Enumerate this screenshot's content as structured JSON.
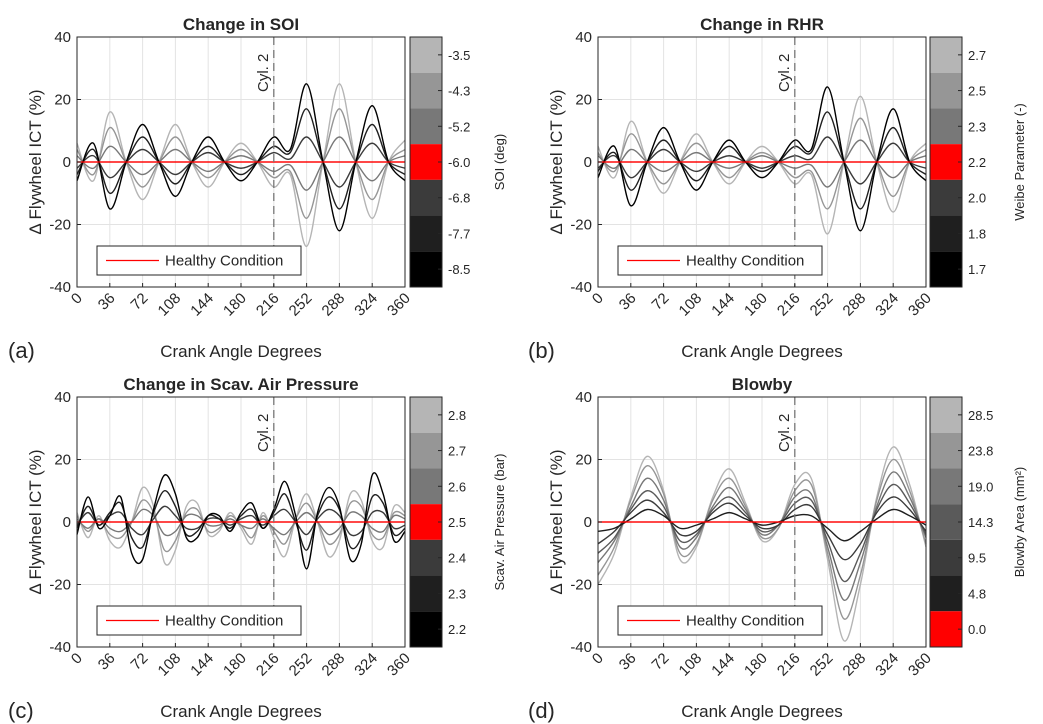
{
  "figure": {
    "panels": [
      {
        "label": "(a)",
        "title": "Change in SOI",
        "annotation": "Cyl. 2",
        "legend": "Healthy Condition",
        "colorbar": {
          "label": "SOI (deg)",
          "ticks": [
            "-3.5",
            "-4.3",
            "-5.2",
            "-6.0",
            "-6.8",
            "-7.7",
            "-8.5"
          ],
          "colors": [
            "#b5b5b5",
            "#969696",
            "#787878",
            "#ff0000",
            "#3b3b3b",
            "#1f1f1f",
            "#000000"
          ]
        }
      },
      {
        "label": "(b)",
        "title": "Change in RHR",
        "annotation": "Cyl. 2",
        "legend": "Healthy Condition",
        "colorbar": {
          "label": "Weibe Parameter (-)",
          "ticks": [
            "2.7",
            "2.5",
            "2.3",
            "2.2",
            "2.0",
            "1.8",
            "1.7"
          ],
          "colors": [
            "#b5b5b5",
            "#969696",
            "#787878",
            "#ff0000",
            "#3b3b3b",
            "#1f1f1f",
            "#000000"
          ]
        }
      },
      {
        "label": "(c)",
        "title": "Change in Scav. Air Pressure",
        "annotation": "Cyl. 2",
        "legend": "Healthy Condition",
        "colorbar": {
          "label": "Scav. Air Pressure (bar)",
          "ticks": [
            "2.8",
            "2.7",
            "2.6",
            "2.5",
            "2.4",
            "2.3",
            "2.2"
          ],
          "colors": [
            "#b5b5b5",
            "#969696",
            "#787878",
            "#ff0000",
            "#3b3b3b",
            "#1f1f1f",
            "#000000"
          ]
        }
      },
      {
        "label": "(d)",
        "title": "Blowby",
        "annotation": "Cyl. 2",
        "legend": "Healthy Condition",
        "colorbar": {
          "label": "Blowby Area (mm²)",
          "ticks": [
            "28.5",
            "23.8",
            "19.0",
            "14.3",
            "9.5",
            "4.8",
            "0.0"
          ],
          "colors": [
            "#b5b5b5",
            "#969696",
            "#787878",
            "#5a5a5a",
            "#3b3b3b",
            "#1f1f1f",
            "#ff0000"
          ]
        }
      }
    ]
  },
  "chart_data": [
    {
      "type": "line",
      "title": "Change in SOI",
      "xlabel": "Crank Angle Degrees",
      "ylabel": "Δ Flywheel ICT (%)",
      "xlim": [
        0,
        360
      ],
      "ylim": [
        -40,
        40
      ],
      "xticks": [
        0,
        36,
        72,
        108,
        144,
        180,
        216,
        252,
        288,
        324,
        360
      ],
      "yticks": [
        -40,
        -20,
        0,
        20,
        40
      ],
      "grid": true,
      "legend_position": "bottom-left",
      "vline": {
        "x": 216,
        "label": "Cyl. 2"
      },
      "x": [
        0,
        18,
        36,
        54,
        72,
        90,
        108,
        126,
        144,
        162,
        180,
        198,
        216,
        234,
        252,
        270,
        288,
        306,
        324,
        342,
        360
      ],
      "series": [
        {
          "name": "-3.5",
          "color": "#b5b5b5",
          "values": [
            6,
            -6,
            16,
            0,
            -12,
            0,
            12,
            0,
            -8,
            0,
            6,
            0,
            -8,
            -4,
            -27,
            0,
            25,
            0,
            -18,
            0,
            7
          ]
        },
        {
          "name": "-4.3",
          "color": "#969696",
          "values": [
            4,
            -4,
            11,
            0,
            -8,
            0,
            8,
            0,
            -5,
            0,
            4,
            0,
            -5,
            -3,
            -18,
            0,
            17,
            0,
            -12,
            0,
            4
          ]
        },
        {
          "name": "-5.2",
          "color": "#787878",
          "values": [
            2,
            -2,
            5,
            0,
            -4,
            0,
            4,
            0,
            -3,
            0,
            2,
            0,
            -3,
            -1,
            -9,
            0,
            8,
            0,
            -6,
            0,
            2
          ]
        },
        {
          "name": "-6.0",
          "color": "#ff0000",
          "values": [
            0,
            0,
            0,
            0,
            0,
            0,
            0,
            0,
            0,
            0,
            0,
            0,
            0,
            0,
            0,
            0,
            0,
            0,
            0,
            0,
            0
          ]
        },
        {
          "name": "-6.8",
          "color": "#3b3b3b",
          "values": [
            -2,
            2,
            -5,
            0,
            4,
            0,
            -4,
            0,
            3,
            0,
            -2,
            0,
            3,
            1,
            8,
            0,
            -8,
            0,
            6,
            0,
            -2
          ]
        },
        {
          "name": "-7.7",
          "color": "#1f1f1f",
          "values": [
            -4,
            4,
            -10,
            0,
            8,
            0,
            -7,
            0,
            5,
            0,
            -4,
            0,
            5,
            3,
            17,
            0,
            -15,
            0,
            12,
            0,
            -4
          ]
        },
        {
          "name": "-8.5",
          "color": "#000000",
          "values": [
            -6,
            6,
            -15,
            0,
            12,
            0,
            -11,
            0,
            8,
            0,
            -6,
            0,
            8,
            4,
            25,
            0,
            -22,
            0,
            18,
            0,
            -6
          ]
        }
      ],
      "legend": [
        "Healthy Condition"
      ]
    },
    {
      "type": "line",
      "title": "Change in RHR",
      "xlabel": "Crank Angle Degrees",
      "ylabel": "Δ Flywheel ICT (%)",
      "xlim": [
        0,
        360
      ],
      "ylim": [
        -40,
        40
      ],
      "xticks": [
        0,
        36,
        72,
        108,
        144,
        180,
        216,
        252,
        288,
        324,
        360
      ],
      "yticks": [
        -40,
        -20,
        0,
        20,
        40
      ],
      "grid": true,
      "legend_position": "bottom-left",
      "vline": {
        "x": 216,
        "label": "Cyl. 2"
      },
      "x": [
        0,
        18,
        36,
        54,
        72,
        90,
        108,
        126,
        144,
        162,
        180,
        198,
        216,
        234,
        252,
        270,
        288,
        306,
        324,
        342,
        360
      ],
      "series": [
        {
          "name": "2.7",
          "color": "#b5b5b5",
          "values": [
            5,
            -5,
            13,
            0,
            -10,
            0,
            9,
            0,
            -7,
            0,
            5,
            0,
            -7,
            -4,
            -23,
            0,
            21,
            0,
            -16,
            0,
            6
          ]
        },
        {
          "name": "2.5",
          "color": "#969696",
          "values": [
            3,
            -3,
            9,
            0,
            -7,
            0,
            6,
            0,
            -5,
            0,
            3,
            0,
            -5,
            -3,
            -15,
            0,
            14,
            0,
            -11,
            0,
            4
          ]
        },
        {
          "name": "2.3",
          "color": "#787878",
          "values": [
            2,
            -2,
            4,
            0,
            -3,
            0,
            3,
            0,
            -2,
            0,
            2,
            0,
            -2,
            -1,
            -8,
            0,
            7,
            0,
            -5,
            0,
            2
          ]
        },
        {
          "name": "2.2",
          "color": "#ff0000",
          "values": [
            0,
            0,
            0,
            0,
            0,
            0,
            0,
            0,
            0,
            0,
            0,
            0,
            0,
            0,
            0,
            0,
            0,
            0,
            0,
            0,
            0
          ]
        },
        {
          "name": "2.0",
          "color": "#3b3b3b",
          "values": [
            -2,
            2,
            -5,
            0,
            4,
            0,
            -3,
            0,
            2,
            0,
            -2,
            0,
            2,
            1,
            8,
            0,
            -7,
            0,
            6,
            0,
            -2
          ]
        },
        {
          "name": "1.8",
          "color": "#1f1f1f",
          "values": [
            -3,
            3,
            -9,
            0,
            7,
            0,
            -6,
            0,
            5,
            0,
            -3,
            0,
            5,
            3,
            16,
            0,
            -15,
            0,
            11,
            0,
            -4
          ]
        },
        {
          "name": "1.7",
          "color": "#000000",
          "values": [
            -5,
            5,
            -14,
            0,
            11,
            0,
            -9,
            0,
            7,
            0,
            -5,
            0,
            7,
            4,
            24,
            0,
            -22,
            0,
            17,
            0,
            -6
          ]
        }
      ],
      "legend": [
        "Healthy Condition"
      ]
    },
    {
      "type": "line",
      "title": "Change in Scav. Air Pressure",
      "xlabel": "Crank Angle Degrees",
      "ylabel": "Δ Flywheel ICT (%)",
      "xlim": [
        0,
        360
      ],
      "ylim": [
        -40,
        40
      ],
      "xticks": [
        0,
        36,
        72,
        108,
        144,
        180,
        216,
        252,
        288,
        324,
        360
      ],
      "yticks": [
        -40,
        -20,
        0,
        20,
        40
      ],
      "grid": true,
      "legend_position": "bottom-left",
      "vline": {
        "x": 216,
        "label": "Cyl. 2"
      },
      "x": [
        0,
        12,
        24,
        36,
        48,
        60,
        72,
        84,
        96,
        108,
        120,
        132,
        144,
        156,
        168,
        180,
        192,
        204,
        216,
        228,
        240,
        252,
        264,
        276,
        288,
        300,
        312,
        324,
        336,
        348,
        360
      ],
      "series": [
        {
          "name": "2.8",
          "color": "#b5b5b5",
          "values": [
            3,
            -5,
            2,
            -6,
            -8,
            0,
            11,
            5,
            -13,
            -9,
            5,
            6,
            -4,
            -3,
            3,
            -2,
            -7,
            3,
            -5,
            -11,
            1,
            9,
            0,
            -11,
            -6,
            9,
            7,
            -6,
            -8,
            5,
            3
          ]
        },
        {
          "name": "2.7",
          "color": "#969696",
          "values": [
            2,
            -3,
            1,
            -4,
            -5,
            0,
            7,
            3,
            -9,
            -6,
            3,
            4,
            -3,
            -2,
            2,
            -1,
            -5,
            2,
            -3,
            -7,
            1,
            6,
            0,
            -7,
            -4,
            6,
            5,
            -4,
            -5,
            3,
            2
          ]
        },
        {
          "name": "2.6",
          "color": "#787878",
          "values": [
            1,
            -2,
            1,
            -2,
            -3,
            0,
            4,
            2,
            -4,
            -3,
            2,
            2,
            -1,
            -1,
            1,
            -1,
            -2,
            1,
            -2,
            -4,
            0,
            3,
            0,
            -4,
            -2,
            3,
            2,
            -2,
            -3,
            2,
            1
          ]
        },
        {
          "name": "2.5",
          "color": "#ff0000",
          "values": [
            0,
            0,
            0,
            0,
            0,
            0,
            0,
            0,
            0,
            0,
            0,
            0,
            0,
            0,
            0,
            0,
            0,
            0,
            0,
            0,
            0,
            0,
            0,
            0,
            0,
            0,
            0,
            0,
            0,
            0,
            0
          ]
        },
        {
          "name": "2.4",
          "color": "#3b3b3b",
          "values": [
            -1,
            3,
            -1,
            2,
            3,
            -2,
            -4,
            1,
            5,
            2,
            -2,
            -2,
            1,
            1,
            -1,
            1,
            2,
            -1,
            2,
            4,
            0,
            -4,
            1,
            4,
            2,
            -4,
            -3,
            3,
            3,
            -2,
            -1
          ]
        },
        {
          "name": "2.3",
          "color": "#1f1f1f",
          "values": [
            -2,
            5,
            -1,
            3,
            6,
            -5,
            -8,
            3,
            10,
            5,
            -4,
            -3,
            2,
            1,
            -2,
            2,
            4,
            -2,
            3,
            9,
            0,
            -9,
            2,
            8,
            4,
            -8,
            -5,
            8,
            6,
            -4,
            -2
          ]
        },
        {
          "name": "2.2",
          "color": "#000000",
          "values": [
            -4,
            8,
            -2,
            2,
            8,
            -10,
            -12,
            4,
            15,
            9,
            -5,
            -5,
            2,
            2,
            -3,
            3,
            6,
            -2,
            4,
            13,
            2,
            -15,
            3,
            11,
            5,
            -12,
            -7,
            15,
            9,
            -6,
            -3
          ]
        }
      ],
      "legend": [
        "Healthy Condition"
      ]
    },
    {
      "type": "line",
      "title": "Blowby",
      "xlabel": "Crank Angle Degrees",
      "ylabel": "Δ Flywheel ICT (%)",
      "xlim": [
        0,
        360
      ],
      "ylim": [
        -40,
        40
      ],
      "xticks": [
        0,
        36,
        72,
        108,
        144,
        180,
        216,
        252,
        288,
        324,
        360
      ],
      "yticks": [
        -40,
        -20,
        0,
        20,
        40
      ],
      "grid": true,
      "legend_position": "bottom-left",
      "vline": {
        "x": 216,
        "label": "Cyl. 2"
      },
      "x": [
        0,
        18,
        36,
        54,
        72,
        90,
        108,
        126,
        144,
        162,
        180,
        198,
        216,
        234,
        252,
        270,
        288,
        306,
        324,
        342,
        360
      ],
      "series": [
        {
          "name": "28.5",
          "color": "#b5b5b5",
          "values": [
            -20,
            -10,
            8,
            21,
            10,
            -12,
            -8,
            8,
            17,
            6,
            -6,
            -2,
            12,
            14,
            -12,
            -38,
            -20,
            8,
            24,
            12,
            -8
          ]
        },
        {
          "name": "23.8",
          "color": "#969696",
          "values": [
            -17,
            -8,
            7,
            18,
            9,
            -10,
            -7,
            7,
            14,
            5,
            -5,
            -2,
            10,
            12,
            -10,
            -31,
            -17,
            7,
            20,
            10,
            -7
          ]
        },
        {
          "name": "19.0",
          "color": "#787878",
          "values": [
            -13,
            -6,
            5,
            14,
            7,
            -8,
            -5,
            5,
            11,
            4,
            -4,
            -1,
            8,
            9,
            -8,
            -25,
            -13,
            5,
            16,
            8,
            -5
          ]
        },
        {
          "name": "14.3",
          "color": "#5a5a5a",
          "values": [
            -10,
            -5,
            4,
            10,
            5,
            -6,
            -4,
            4,
            8,
            3,
            -3,
            -1,
            6,
            7,
            -6,
            -19,
            -10,
            4,
            12,
            6,
            -4
          ]
        },
        {
          "name": "9.5",
          "color": "#3b3b3b",
          "values": [
            -7,
            -3,
            3,
            7,
            3,
            -4,
            -3,
            3,
            6,
            2,
            -2,
            -1,
            4,
            5,
            -4,
            -12,
            -7,
            3,
            8,
            4,
            -3
          ]
        },
        {
          "name": "4.8",
          "color": "#1f1f1f",
          "values": [
            -3,
            -2,
            1,
            4,
            2,
            -2,
            -1,
            1,
            3,
            1,
            -1,
            0,
            2,
            2,
            -2,
            -6,
            -3,
            1,
            4,
            2,
            -1
          ]
        },
        {
          "name": "0.0",
          "color": "#ff0000",
          "values": [
            0,
            0,
            0,
            0,
            0,
            0,
            0,
            0,
            0,
            0,
            0,
            0,
            0,
            0,
            0,
            0,
            0,
            0,
            0,
            0,
            0
          ]
        }
      ],
      "legend": [
        "Healthy Condition"
      ]
    }
  ]
}
